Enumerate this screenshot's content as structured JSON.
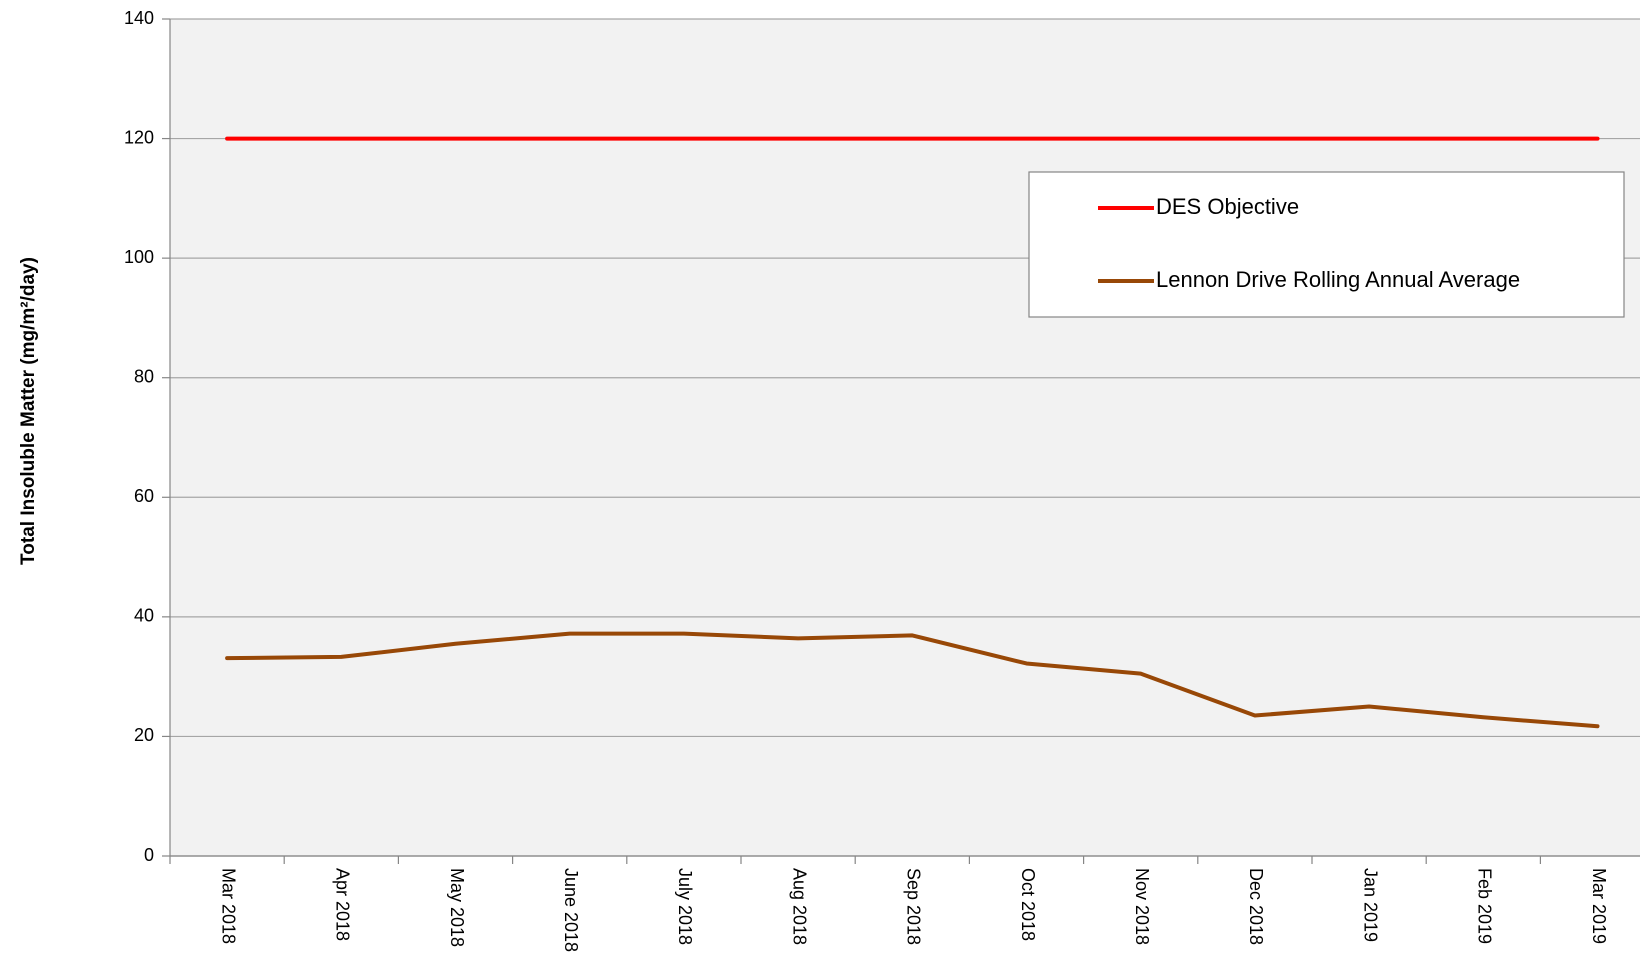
{
  "chart_data": {
    "type": "line",
    "ylabel": "Total Insoluble Matter (mg/m²/day)",
    "categories": [
      "Mar 2018",
      "Apr 2018",
      "May 2018",
      "June 2018",
      "July 2018",
      "Aug 2018",
      "Sep 2018",
      "Oct 2018",
      "Nov 2018",
      "Dec 2018",
      "Jan 2019",
      "Feb 2019",
      "Mar 2019"
    ],
    "series": [
      {
        "name": "DES Objective",
        "color": "#ff0000",
        "values": [
          120,
          120,
          120,
          120,
          120,
          120,
          120,
          120,
          120,
          120,
          120,
          120,
          120
        ]
      },
      {
        "name": "Lennon Drive Rolling Annual Average",
        "color": "#984807",
        "values": [
          33.1,
          33.3,
          35.5,
          37.2,
          37.2,
          36.4,
          36.9,
          32.2,
          30.5,
          23.5,
          25.0,
          23.2,
          21.7
        ]
      }
    ],
    "ylim": [
      0,
      140
    ],
    "yticks": [
      0,
      20,
      40,
      60,
      80,
      100,
      120,
      140
    ],
    "grid": true,
    "legend": "upper right"
  }
}
